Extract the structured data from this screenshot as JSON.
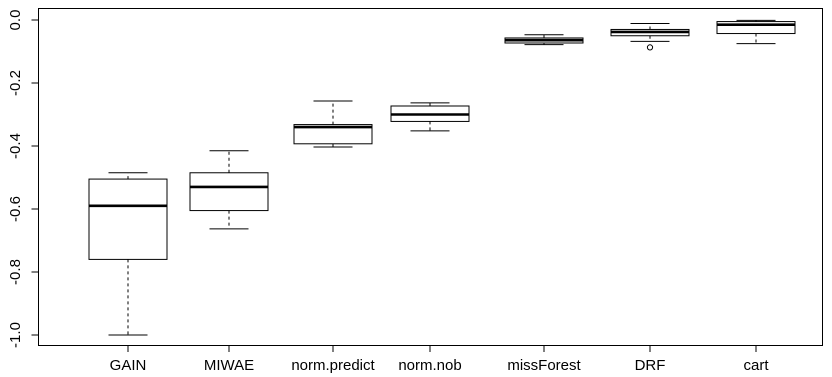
{
  "chart_data": {
    "type": "boxplot",
    "title": "",
    "xlabel": "",
    "ylabel": "",
    "ylim": [
      -1.04,
      0.04
    ],
    "yticks": [
      0.0,
      -0.2,
      -0.4,
      -0.6,
      -0.8,
      -1.0
    ],
    "ytick_labels": [
      "0.0",
      "-0.2",
      "-0.4",
      "-0.6",
      "-0.8",
      "-1.0"
    ],
    "grid": false,
    "categories": [
      "GAIN",
      "MIWAE",
      "norm.predict",
      "norm.nob",
      "missForest",
      "DRF",
      "cart"
    ],
    "boxes": [
      {
        "name": "GAIN",
        "min": -1.0,
        "q1": -0.76,
        "median": -0.59,
        "q3": -0.505,
        "max": -0.485,
        "outliers": []
      },
      {
        "name": "MIWAE",
        "min": -0.663,
        "q1": -0.605,
        "median": -0.53,
        "q3": -0.485,
        "max": -0.415,
        "outliers": []
      },
      {
        "name": "norm.predict",
        "min": -0.403,
        "q1": -0.393,
        "median": -0.34,
        "q3": -0.332,
        "max": -0.257,
        "outliers": []
      },
      {
        "name": "norm.nob",
        "min": -0.352,
        "q1": -0.322,
        "median": -0.3,
        "q3": -0.273,
        "max": -0.263,
        "outliers": []
      },
      {
        "name": "missForest",
        "min": -0.078,
        "q1": -0.073,
        "median": -0.064,
        "q3": -0.057,
        "max": -0.047,
        "outliers": []
      },
      {
        "name": "DRF",
        "min": -0.068,
        "q1": -0.05,
        "median": -0.038,
        "q3": -0.03,
        "max": -0.011,
        "outliers": [
          -0.087
        ]
      },
      {
        "name": "cart",
        "min": -0.075,
        "q1": -0.043,
        "median": -0.015,
        "q3": -0.005,
        "max": -0.001,
        "outliers": []
      }
    ]
  }
}
